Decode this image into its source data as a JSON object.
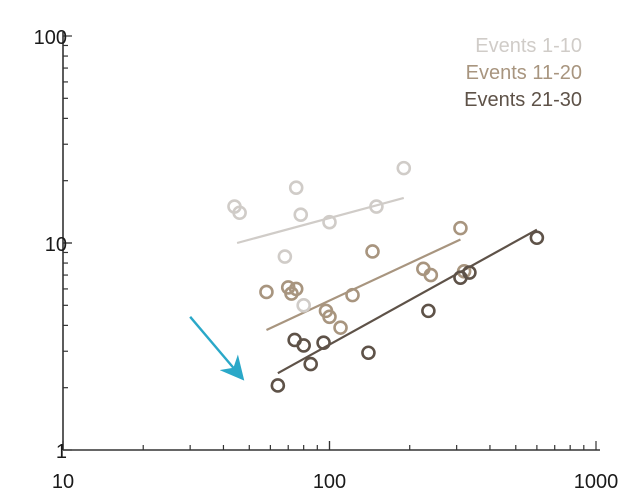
{
  "chart_data": {
    "type": "scatter",
    "title": "",
    "xlabel": "",
    "ylabel": "",
    "x_scale": "log",
    "y_scale": "log",
    "xlim": [
      10,
      1000
    ],
    "ylim": [
      1,
      100
    ],
    "x_ticks": [
      {
        "value": 10,
        "label": "10"
      },
      {
        "value": 100,
        "label": "100"
      },
      {
        "value": 1000,
        "label": "1000"
      }
    ],
    "y_ticks": [
      {
        "value": 1,
        "label": "1"
      },
      {
        "value": 10,
        "label": "10"
      },
      {
        "value": 100,
        "label": "100"
      }
    ],
    "grid": false,
    "legend_position": "top-right",
    "series": [
      {
        "name": "Events 1-10",
        "color": "#d0ccc8",
        "points": [
          {
            "x": 44,
            "y": 15
          },
          {
            "x": 46,
            "y": 14
          },
          {
            "x": 68,
            "y": 8.6
          },
          {
            "x": 75,
            "y": 18.5
          },
          {
            "x": 78,
            "y": 13.7
          },
          {
            "x": 80,
            "y": 5.0
          },
          {
            "x": 100,
            "y": 12.6
          },
          {
            "x": 150,
            "y": 15
          },
          {
            "x": 190,
            "y": 23
          }
        ],
        "trend": [
          {
            "x": 45,
            "y": 10
          },
          {
            "x": 190,
            "y": 16.5
          }
        ]
      },
      {
        "name": "Events 11-20",
        "color": "#a8957f",
        "points": [
          {
            "x": 58,
            "y": 5.8
          },
          {
            "x": 70,
            "y": 6.1
          },
          {
            "x": 72,
            "y": 5.7
          },
          {
            "x": 75,
            "y": 6.0
          },
          {
            "x": 97,
            "y": 4.7
          },
          {
            "x": 100,
            "y": 4.4
          },
          {
            "x": 110,
            "y": 3.9
          },
          {
            "x": 122,
            "y": 5.6
          },
          {
            "x": 145,
            "y": 9.1
          },
          {
            "x": 225,
            "y": 7.5
          },
          {
            "x": 240,
            "y": 7.0
          },
          {
            "x": 310,
            "y": 11.8
          },
          {
            "x": 320,
            "y": 7.3
          }
        ],
        "trend": [
          {
            "x": 58,
            "y": 3.8
          },
          {
            "x": 310,
            "y": 10.4
          }
        ]
      },
      {
        "name": "Events 21-30",
        "color": "#5e5248",
        "points": [
          {
            "x": 64,
            "y": 2.05
          },
          {
            "x": 74,
            "y": 3.4
          },
          {
            "x": 80,
            "y": 3.2
          },
          {
            "x": 85,
            "y": 2.6
          },
          {
            "x": 95,
            "y": 3.3
          },
          {
            "x": 140,
            "y": 2.95
          },
          {
            "x": 235,
            "y": 4.7
          },
          {
            "x": 310,
            "y": 6.8
          },
          {
            "x": 335,
            "y": 7.2
          },
          {
            "x": 600,
            "y": 10.6
          }
        ],
        "trend": [
          {
            "x": 64,
            "y": 2.35
          },
          {
            "x": 600,
            "y": 11.6
          }
        ]
      }
    ],
    "annotations": [
      {
        "type": "arrow",
        "color": "#2aa8c8",
        "from": {
          "x": 30,
          "y": 4.4
        },
        "to": {
          "x": 46,
          "y": 2.3
        }
      }
    ]
  }
}
